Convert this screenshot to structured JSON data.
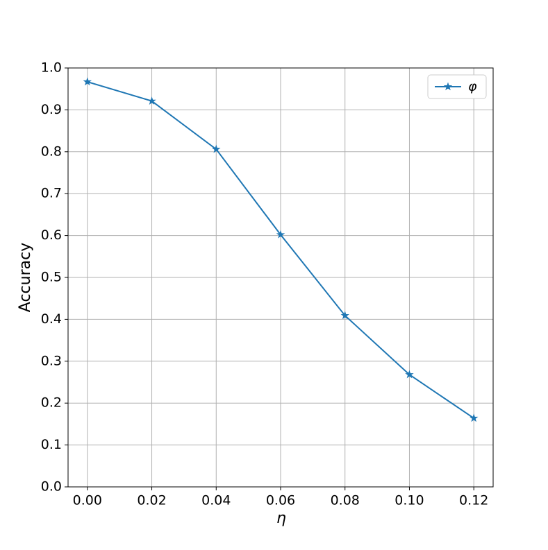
{
  "chart_data": {
    "type": "line",
    "x_label": "η",
    "y_label": "Accuracy",
    "x": [
      0.0,
      0.02,
      0.04,
      0.06,
      0.08,
      0.1,
      0.12
    ],
    "series": [
      {
        "name": "φ",
        "color": "#1f77b4",
        "marker": "star",
        "values": [
          0.967,
          0.921,
          0.806,
          0.602,
          0.409,
          0.268,
          0.164
        ]
      }
    ],
    "xlim": [
      -0.006,
      0.126
    ],
    "ylim": [
      0,
      1
    ],
    "xticks": [
      {
        "value": 0,
        "label": "0.00"
      },
      {
        "value": 0.02,
        "label": "0.02"
      },
      {
        "value": 0.04,
        "label": "0.04"
      },
      {
        "value": 0.06,
        "label": "0.06"
      },
      {
        "value": 0.08,
        "label": "0.08"
      },
      {
        "value": 0.1,
        "label": "0.10"
      },
      {
        "value": 0.12,
        "label": "0.12"
      }
    ],
    "yticks": [
      {
        "value": 0,
        "label": "0.0"
      },
      0.1,
      0.2,
      0.3,
      0.4,
      0.5,
      0.6,
      0.7,
      0.8,
      0.9,
      {
        "value": 1,
        "label": "1.0"
      }
    ],
    "grid": true,
    "legend": "upper right"
  }
}
